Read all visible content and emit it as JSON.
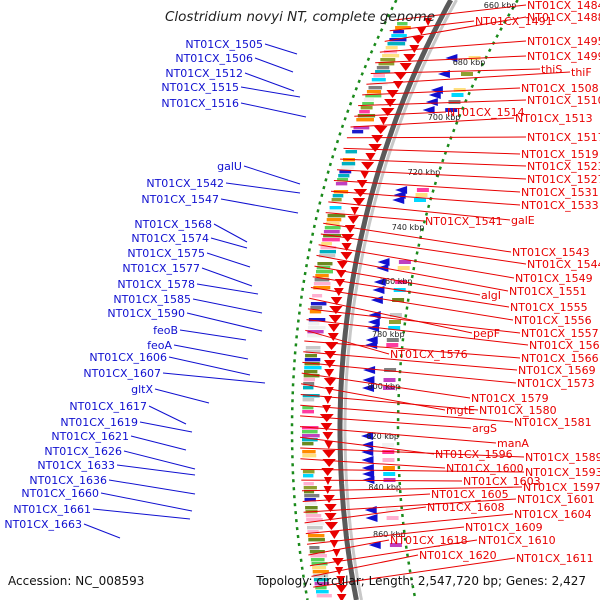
{
  "title": "Clostridium novyi NT, complete genome",
  "footer": {
    "accession": "Accession: NC_008593",
    "topology": "Topology: circular; Length: 2,547,720 bp; Genes: 2,427"
  },
  "colors": {
    "forward": "#1010d0",
    "reverse": "#e80000",
    "backbone": "#777777",
    "gc_dots": "#1a8a1a"
  },
  "scale_ticks": [
    "660 kbp",
    "680 kbp",
    "700 kbp",
    "720 kbp",
    "740 kbp",
    "760 kbp",
    "780 kbp",
    "800 kbp",
    "820 kbp",
    "840 kbp",
    "860 kbp"
  ],
  "forward_genes": [
    "NT01CX_1505",
    "NT01CX_1506",
    "NT01CX_1512",
    "NT01CX_1515",
    "NT01CX_1516",
    "galU",
    "NT01CX_1542",
    "NT01CX_1547",
    "NT01CX_1568",
    "NT01CX_1574",
    "NT01CX_1575",
    "NT01CX_1577",
    "NT01CX_1578",
    "NT01CX_1585",
    "NT01CX_1590",
    "feoB",
    "feoA",
    "NT01CX_1606",
    "NT01CX_1607",
    "gltX",
    "NT01CX_1617",
    "NT01CX_1619",
    "NT01CX_1621",
    "NT01CX_1626",
    "NT01CX_1633",
    "NT01CX_1636",
    "NT01CX_1660",
    "NT01CX_1661",
    "NT01CX_1663"
  ],
  "reverse_genes": [
    "NT01CX_1484",
    "NT01CX_1491",
    "NT01CX_1488",
    "NT01CX_1495",
    "NT01CX_1499",
    "thiS",
    "thiF",
    "NT01CX_1508",
    "NT01CX_1510",
    "NT01CX_1514",
    "NT01CX_1513",
    "NT01CX_1517",
    "NT01CX_1519",
    "NT01CX_1523",
    "NT01CX_1527",
    "NT01CX_1531",
    "NT01CX_1533",
    "galE",
    "NT01CX_1541",
    "NT01CX_1543",
    "NT01CX_1544",
    "NT01CX_1549",
    "NT01CX_1551",
    "algI",
    "NT01CX_1555",
    "NT01CX_1556",
    "pepF",
    "NT01CX_1557",
    "NT01CX_1562",
    "NT01CX_1576",
    "NT01CX_1566",
    "NT01CX_1569",
    "NT01CX_1573",
    "NT01CX_1579",
    "mgtE",
    "NT01CX_1580",
    "NT01CX_1581",
    "argS",
    "manA",
    "NT01CX_1596",
    "NT01CX_1589",
    "NT01CX_1600",
    "NT01CX_1593",
    "NT01CX_1603",
    "NT01CX_1597",
    "NT01CX_1605",
    "NT01CX_1601",
    "NT01CX_1608",
    "NT01CX_1604",
    "NT01CX_1609",
    "NT01CX_1618",
    "NT01CX_1610",
    "NT01CX_1620",
    "NT01CX_1611"
  ]
}
